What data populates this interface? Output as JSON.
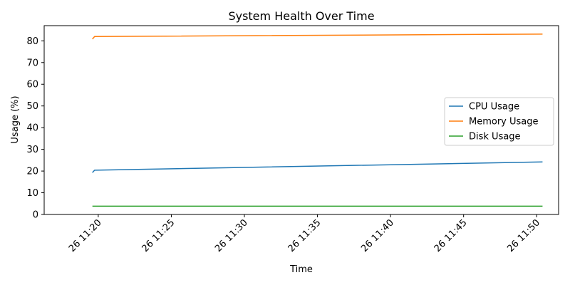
{
  "chart_data": {
    "type": "line",
    "title": "System Health Over Time",
    "xlabel": "Time",
    "ylabel": "Usage (%)",
    "x_ticks": [
      "26 11:20",
      "26 11:25",
      "26 11:30",
      "26 11:35",
      "26 11:40",
      "26 11:45",
      "26 11:50"
    ],
    "x_tick_minutes": [
      20,
      25,
      30,
      35,
      40,
      45,
      50
    ],
    "xlim": [
      16.3,
      51.5
    ],
    "y_ticks": [
      0,
      10,
      20,
      30,
      40,
      50,
      60,
      70,
      80
    ],
    "ylim": [
      0,
      87
    ],
    "grid": false,
    "legend_position": "center-right",
    "series": [
      {
        "name": "CPU Usage",
        "color": "#1f77b4",
        "points": [
          [
            19.6,
            19.3
          ],
          [
            19.75,
            20.4
          ],
          [
            50.4,
            24.2
          ]
        ]
      },
      {
        "name": "Memory Usage",
        "color": "#ff7f0e",
        "points": [
          [
            19.6,
            80.8
          ],
          [
            19.75,
            82.0
          ],
          [
            50.4,
            83.1
          ]
        ]
      },
      {
        "name": "Disk Usage",
        "color": "#2ca02c",
        "points": [
          [
            19.6,
            3.8
          ],
          [
            19.75,
            3.8
          ],
          [
            50.4,
            3.8
          ]
        ]
      }
    ]
  }
}
